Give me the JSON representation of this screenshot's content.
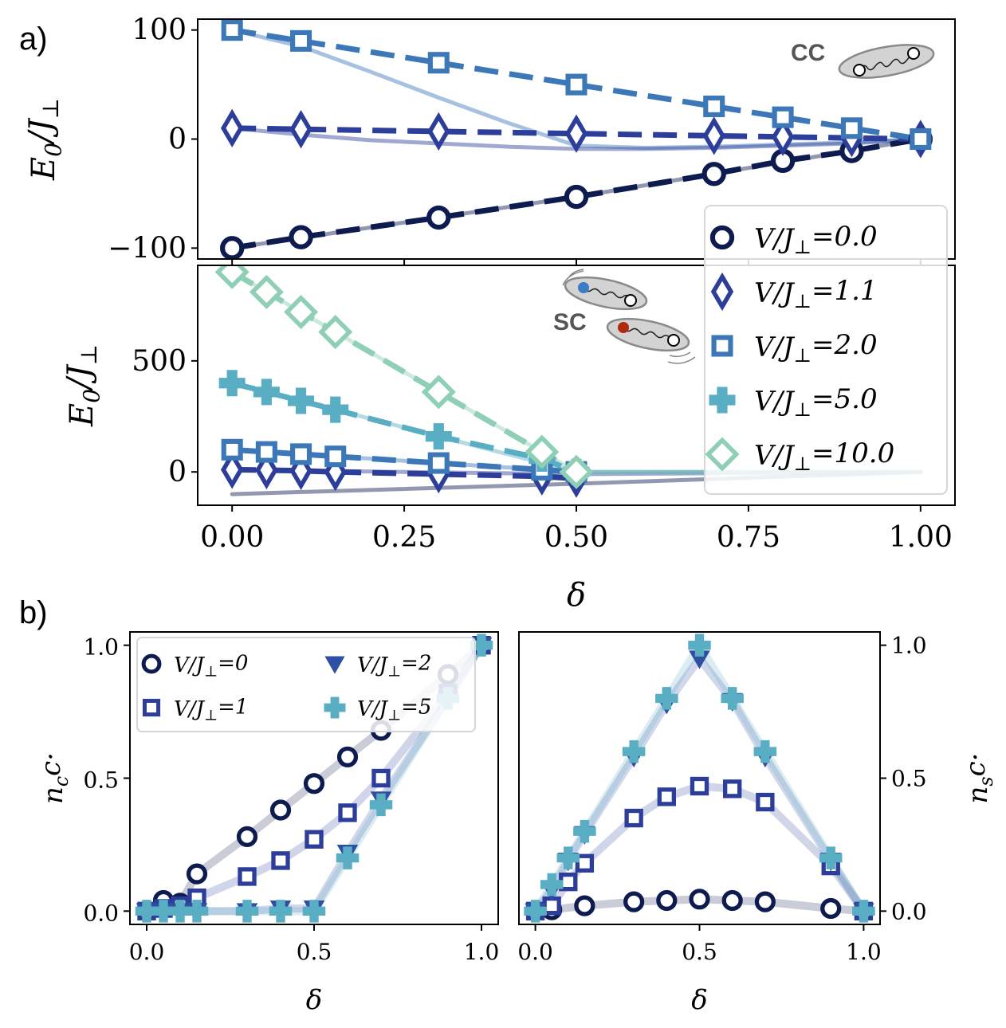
{
  "panel_labels": {
    "a": "a)",
    "b": "b)"
  },
  "insets": {
    "cc": "CC",
    "sc": "SC"
  },
  "chart_data": [
    {
      "id": "a_top",
      "type": "line",
      "xlim": [
        -0.05,
        1.05
      ],
      "ylim": [
        -110,
        110
      ],
      "ylabel": "E_0/J_⊥",
      "yticks": [
        {
          "v": 100,
          "label": "100"
        },
        {
          "v": 0,
          "label": "0"
        },
        {
          "v": -100,
          "label": "−100"
        }
      ],
      "series": [
        {
          "name": "V/J_⊥=0.0",
          "marker": "circle",
          "color": "#0d1b4f",
          "x": [
            0,
            0.1,
            0.3,
            0.5,
            0.7,
            0.8,
            0.9,
            1.0
          ],
          "y": [
            -100,
            -90,
            -72,
            -53,
            -32,
            -20,
            -11,
            0
          ]
        },
        {
          "name": "V/J_⊥=1.1",
          "marker": "diamond",
          "color": "#2c3e9a",
          "x": [
            0,
            0.1,
            0.3,
            0.5,
            0.7,
            0.8,
            0.9,
            1.0
          ],
          "y": [
            10,
            9,
            7,
            5,
            3,
            2,
            1,
            0
          ]
        },
        {
          "name": "V/J_⊥=2.0",
          "marker": "square",
          "color": "#3c78b8",
          "x": [
            0,
            0.1,
            0.3,
            0.5,
            0.7,
            0.8,
            0.9,
            1.0
          ],
          "y": [
            100,
            90,
            70,
            50,
            30,
            20,
            10,
            0
          ]
        }
      ],
      "lines": [
        {
          "color": "#3c78b8",
          "x": [
            0,
            0.1,
            0.2,
            0.3,
            0.4,
            0.5,
            0.6,
            0.7,
            0.8,
            0.9,
            1.0
          ],
          "y": [
            100,
            85,
            62,
            38,
            15,
            -6,
            -8,
            -7,
            -5,
            -3,
            0
          ]
        },
        {
          "color": "#2c3e9a",
          "x": [
            0,
            0.1,
            0.2,
            0.3,
            0.4,
            0.5,
            0.6,
            0.7,
            0.8,
            0.9,
            1.0
          ],
          "y": [
            10,
            4,
            -1,
            -4,
            -7,
            -9,
            -9,
            -8,
            -6,
            -4,
            0
          ]
        },
        {
          "color": "#0d1b4f",
          "x": [
            0,
            0.5,
            1.0
          ],
          "y": [
            -100,
            -53,
            0
          ]
        }
      ]
    },
    {
      "id": "a_bottom",
      "type": "line",
      "xlim": [
        -0.05,
        1.05
      ],
      "ylim": [
        -150,
        930
      ],
      "xlabel": "δ",
      "ylabel": "E_0/J_⊥",
      "xticks": [
        {
          "v": 0,
          "label": "0.00"
        },
        {
          "v": 0.25,
          "label": "0.25"
        },
        {
          "v": 0.5,
          "label": "0.50"
        },
        {
          "v": 0.75,
          "label": "0.75"
        },
        {
          "v": 1.0,
          "label": "1.00"
        }
      ],
      "yticks": [
        {
          "v": 500,
          "label": "500"
        },
        {
          "v": 0,
          "label": "0"
        }
      ],
      "series": [
        {
          "name": "V/J_⊥=1.1",
          "marker": "diamond",
          "color": "#2c3e9a",
          "x": [
            0,
            0.05,
            0.1,
            0.15,
            0.3,
            0.45,
            0.5
          ],
          "y": [
            10,
            8,
            5,
            0,
            -10,
            -20,
            -30
          ]
        },
        {
          "name": "V/J_⊥=2.0",
          "marker": "square",
          "color": "#3c78b8",
          "x": [
            0,
            0.05,
            0.1,
            0.15,
            0.3,
            0.45,
            0.5
          ],
          "y": [
            100,
            90,
            80,
            70,
            40,
            10,
            0
          ]
        },
        {
          "name": "V/J_⊥=5.0",
          "marker": "plus",
          "color": "#5aaec4",
          "x": [
            0,
            0.05,
            0.1,
            0.15,
            0.3,
            0.45,
            0.5
          ],
          "y": [
            400,
            360,
            320,
            280,
            160,
            60,
            0
          ]
        },
        {
          "name": "V/J_⊥=10.0",
          "marker": "diamond-open",
          "color": "#8fcfb6",
          "x": [
            0,
            0.05,
            0.1,
            0.15,
            0.3,
            0.45,
            0.5
          ],
          "y": [
            900,
            810,
            720,
            630,
            360,
            90,
            0
          ]
        }
      ],
      "lines": [
        {
          "color": "#0d1b4f",
          "x": [
            0,
            0.5,
            1.0
          ],
          "y": [
            -100,
            -53,
            0
          ]
        },
        {
          "color": "#2c3e9a",
          "x": [
            0,
            0.5,
            1.0
          ],
          "y": [
            10,
            -10,
            0
          ]
        },
        {
          "color": "#3c78b8",
          "x": [
            0,
            0.5,
            1.0
          ],
          "y": [
            100,
            0,
            0
          ]
        },
        {
          "color": "#5aaec4",
          "x": [
            0,
            0.5,
            1.0
          ],
          "y": [
            400,
            0,
            0
          ]
        },
        {
          "color": "#8fcfb6",
          "x": [
            0,
            0.5,
            1.0
          ],
          "y": [
            900,
            0,
            0
          ]
        }
      ]
    },
    {
      "id": "b_left",
      "type": "line",
      "xlim": [
        -0.05,
        1.05
      ],
      "ylim": [
        -0.05,
        1.05
      ],
      "xlabel": "δ",
      "ylabel": "n_cc·",
      "xticks": [
        {
          "v": 0,
          "label": "0.0"
        },
        {
          "v": 0.5,
          "label": "0.5"
        },
        {
          "v": 1.0,
          "label": "1.0"
        }
      ],
      "yticks": [
        {
          "v": 1.0,
          "label": "1.0"
        },
        {
          "v": 0.5,
          "label": "0.5"
        },
        {
          "v": 0.0,
          "label": "0.0"
        }
      ],
      "series": [
        {
          "name": "V/J_⊥=0",
          "marker": "circle",
          "color": "#0d1b4f",
          "x": [
            0,
            0.05,
            0.1,
            0.15,
            0.3,
            0.4,
            0.5,
            0.6,
            0.7,
            0.9,
            1.0
          ],
          "y": [
            0,
            0.04,
            0.03,
            0.14,
            0.28,
            0.38,
            0.48,
            0.58,
            0.68,
            0.89,
            1.0
          ]
        },
        {
          "name": "V/J_⊥=1",
          "marker": "square",
          "color": "#2c3e9a",
          "x": [
            0,
            0.05,
            0.1,
            0.15,
            0.3,
            0.4,
            0.5,
            0.6,
            0.7,
            0.9,
            1.0
          ],
          "y": [
            0,
            0.01,
            0.02,
            0.05,
            0.13,
            0.19,
            0.27,
            0.37,
            0.5,
            0.82,
            1.0
          ]
        },
        {
          "name": "V/J_⊥=2",
          "marker": "triangle",
          "color": "#2f4fa2",
          "x": [
            0,
            0.05,
            0.1,
            0.15,
            0.3,
            0.4,
            0.5,
            0.6,
            0.7,
            0.9,
            1.0
          ],
          "y": [
            0,
            0,
            0,
            0,
            0,
            0.01,
            0.01,
            0.22,
            0.42,
            0.8,
            1.0
          ]
        },
        {
          "name": "V/J_⊥=5",
          "marker": "plus",
          "color": "#5aaec4",
          "x": [
            0,
            0.05,
            0.1,
            0.15,
            0.3,
            0.4,
            0.5,
            0.6,
            0.7,
            0.9,
            1.0
          ],
          "y": [
            0,
            0,
            0,
            0,
            0,
            0,
            0,
            0.2,
            0.4,
            0.8,
            1.0
          ]
        }
      ]
    },
    {
      "id": "b_right",
      "type": "line",
      "xlim": [
        -0.05,
        1.05
      ],
      "ylim": [
        -0.05,
        1.05
      ],
      "xlabel": "δ",
      "ylabel": "n_sc·",
      "xticks": [
        {
          "v": 0,
          "label": "0.0"
        },
        {
          "v": 0.5,
          "label": "0.5"
        },
        {
          "v": 1.0,
          "label": "1.0"
        }
      ],
      "yticks": [
        {
          "v": 1.0,
          "label": "1.0"
        },
        {
          "v": 0.5,
          "label": "0.5"
        },
        {
          "v": 0.0,
          "label": "0.0"
        }
      ],
      "series": [
        {
          "name": "V/J_⊥=0",
          "marker": "circle",
          "color": "#0d1b4f",
          "x": [
            0,
            0.05,
            0.15,
            0.3,
            0.4,
            0.5,
            0.6,
            0.7,
            0.9,
            1.0
          ],
          "y": [
            0,
            0.005,
            0.02,
            0.035,
            0.04,
            0.045,
            0.04,
            0.035,
            0.01,
            0
          ]
        },
        {
          "name": "V/J_⊥=1",
          "marker": "square",
          "color": "#2c3e9a",
          "x": [
            0,
            0.05,
            0.1,
            0.15,
            0.3,
            0.4,
            0.5,
            0.6,
            0.7,
            0.9,
            1.0
          ],
          "y": [
            0,
            0.02,
            0.11,
            0.18,
            0.35,
            0.43,
            0.47,
            0.46,
            0.41,
            0.17,
            0
          ]
        },
        {
          "name": "V/J_⊥=2",
          "marker": "triangle",
          "color": "#2f4fa2",
          "x": [
            0,
            0.05,
            0.1,
            0.15,
            0.3,
            0.4,
            0.5,
            0.6,
            0.7,
            0.9,
            1.0
          ],
          "y": [
            0,
            0.08,
            0.19,
            0.29,
            0.58,
            0.78,
            0.95,
            0.79,
            0.58,
            0.19,
            0
          ]
        },
        {
          "name": "V/J_⊥=5",
          "marker": "plus",
          "color": "#5aaec4",
          "x": [
            0,
            0.05,
            0.1,
            0.15,
            0.3,
            0.4,
            0.5,
            0.6,
            0.7,
            0.9,
            1.0
          ],
          "y": [
            0,
            0.1,
            0.2,
            0.3,
            0.6,
            0.8,
            1.0,
            0.8,
            0.6,
            0.2,
            0
          ]
        }
      ]
    }
  ],
  "legend_a": [
    {
      "label": "V/J_⊥=0.0",
      "marker": "circle",
      "color": "#0d1b4f"
    },
    {
      "label": "V/J_⊥=1.1",
      "marker": "diamond",
      "color": "#2c3e9a"
    },
    {
      "label": "V/J_⊥=2.0",
      "marker": "square",
      "color": "#3c78b8"
    },
    {
      "label": "V/J_⊥=5.0",
      "marker": "plus",
      "color": "#5aaec4"
    },
    {
      "label": "V/J_⊥=10.0",
      "marker": "diamond-open",
      "color": "#8fcfb6"
    }
  ],
  "legend_b": [
    {
      "label": "V/J_⊥=0",
      "marker": "circle",
      "color": "#0d1b4f"
    },
    {
      "label": "V/J_⊥=2",
      "marker": "triangle",
      "color": "#2f4fa2"
    },
    {
      "label": "V/J_⊥=1",
      "marker": "square",
      "color": "#2c3e9a"
    },
    {
      "label": "V/J_⊥=5",
      "marker": "plus",
      "color": "#5aaec4"
    }
  ]
}
